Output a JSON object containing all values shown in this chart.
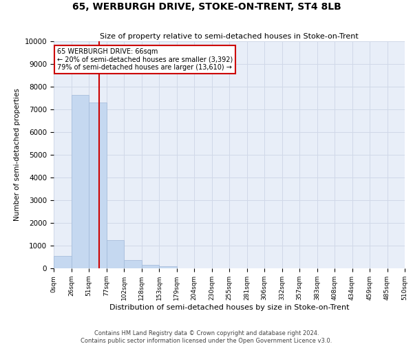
{
  "title": "65, WERBURGH DRIVE, STOKE-ON-TRENT, ST4 8LB",
  "subtitle": "Size of property relative to semi-detached houses in Stoke-on-Trent",
  "xlabel": "Distribution of semi-detached houses by size in Stoke-on-Trent",
  "ylabel": "Number of semi-detached properties",
  "footer_line1": "Contains HM Land Registry data © Crown copyright and database right 2024.",
  "footer_line2": "Contains public sector information licensed under the Open Government Licence v3.0.",
  "bin_labels": [
    "0sqm",
    "26sqm",
    "51sqm",
    "77sqm",
    "102sqm",
    "128sqm",
    "153sqm",
    "179sqm",
    "204sqm",
    "230sqm",
    "255sqm",
    "281sqm",
    "306sqm",
    "332sqm",
    "357sqm",
    "383sqm",
    "408sqm",
    "434sqm",
    "459sqm",
    "485sqm",
    "510sqm"
  ],
  "bar_values": [
    550,
    7650,
    7300,
    1250,
    350,
    150,
    80,
    0,
    0,
    0,
    0,
    0,
    0,
    0,
    0,
    0,
    0,
    0,
    0,
    0
  ],
  "bar_color": "#c5d8f0",
  "bar_edge_color": "#a0b8d8",
  "annotation_text": "65 WERBURGH DRIVE: 66sqm\n← 20% of semi-detached houses are smaller (3,392)\n79% of semi-detached houses are larger (13,610) →",
  "annotation_box_color": "#ffffff",
  "annotation_box_edge_color": "#cc0000",
  "vline_color": "#cc0000",
  "ylim": [
    0,
    10000
  ],
  "yticks": [
    0,
    1000,
    2000,
    3000,
    4000,
    5000,
    6000,
    7000,
    8000,
    9000,
    10000
  ],
  "grid_color": "#d0d8e8",
  "background_color": "#e8eef8",
  "prop_sqm": 66,
  "bin_edges_sqm": [
    0,
    26,
    51,
    77,
    102,
    128,
    153,
    179,
    204,
    230,
    255,
    281,
    306,
    332,
    357,
    383,
    408,
    434,
    459,
    485,
    510
  ]
}
